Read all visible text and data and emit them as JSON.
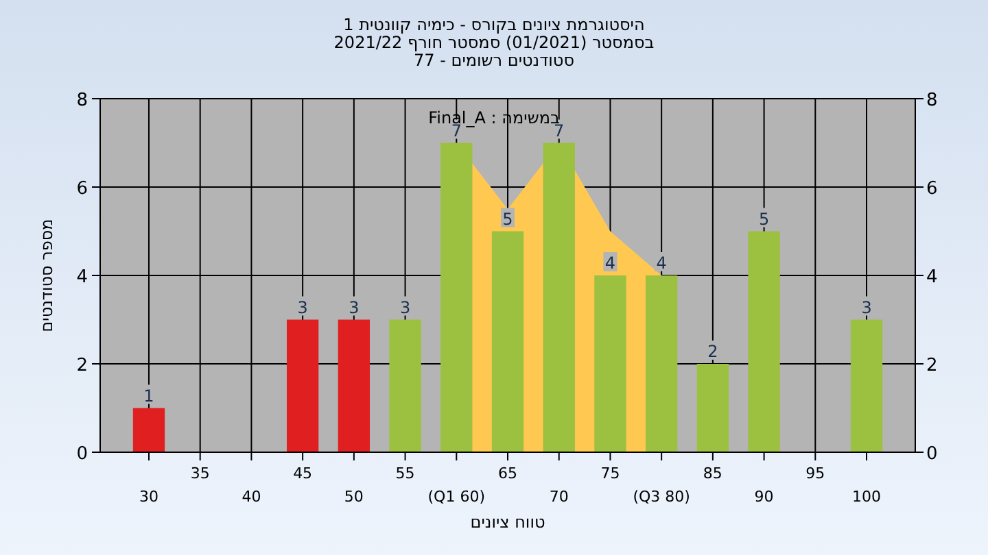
{
  "chart_data": {
    "type": "bar",
    "title": "היסטוגרמת ציונים בקורס - כימיה קוונטית 1",
    "subtitle": "בסמסטר  (01/2021)  סמסטר חורף 2021/22\nסטודנטים רשומים - 77",
    "xlabel": "טווח ציונים",
    "ylabel": "מספר סטודנטים",
    "annotations": [
      "במשימה : Final_A"
    ],
    "categories": [
      "30",
      "35",
      "40",
      "45",
      "50",
      "55",
      "(Q1 60)",
      "65",
      "70",
      "75",
      "(Q3 80)",
      "85",
      "90",
      "95",
      "100"
    ],
    "series": [
      {
        "type": "area",
        "color": "#ffc850",
        "values": [
          null,
          null,
          null,
          null,
          null,
          null,
          7,
          5.5,
          7,
          5,
          4,
          null,
          null,
          null,
          null
        ]
      },
      {
        "type": "bar",
        "values": [
          1,
          0,
          0,
          3,
          3,
          3,
          7,
          5,
          7,
          4,
          4,
          2,
          5,
          0,
          3
        ],
        "value_labels": [
          "1",
          null,
          null,
          "3",
          "3",
          "3",
          "7",
          "5",
          "7",
          "4",
          "4",
          "2",
          "5",
          null,
          "3"
        ],
        "colors": [
          "#e02020",
          "#e02020",
          "#e02020",
          "#e02020",
          "#e02020",
          "#9cc040",
          "#9cc040",
          "#9cc040",
          "#9cc040",
          "#9cc040",
          "#9cc040",
          "#9cc040",
          "#9cc040",
          "#9cc040",
          "#9cc040"
        ]
      }
    ],
    "ylim": [
      0,
      8
    ],
    "yticks": [
      0,
      2,
      4,
      6,
      8
    ],
    "y2lim": [
      0,
      8
    ],
    "y2ticks": [
      0,
      2,
      4,
      6,
      8
    ],
    "grid": true
  }
}
